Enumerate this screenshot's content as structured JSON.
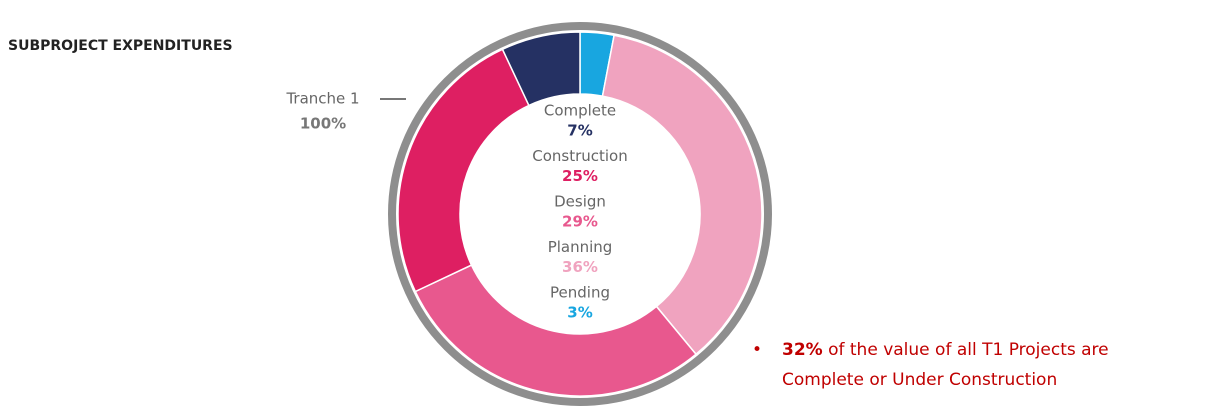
{
  "chart_data": {
    "type": "donut",
    "title": "SUBPROJECT EXPENDITURES",
    "categories": [
      "Complete",
      "Construction",
      "Design",
      "Planning",
      "Pending"
    ],
    "values": [
      7,
      25,
      29,
      36,
      3
    ],
    "value_labels": [
      "7%",
      "25%",
      "29%",
      "36%",
      "3%"
    ],
    "colors": [
      "#253163",
      "#de1f62",
      "#e8588e",
      "#f0a3bf",
      "#18a6e0"
    ],
    "draw_order": [
      "Pending",
      "Planning",
      "Design",
      "Construction",
      "Complete"
    ],
    "outer_ring": {
      "label": "Tranche 1",
      "value": 100,
      "value_label": "100%",
      "color": "#8e8e8e"
    },
    "annotation": {
      "bold": "32%",
      "text": " of the value of all T1 Projects are",
      "text2": "Complete or Under Construction"
    }
  }
}
